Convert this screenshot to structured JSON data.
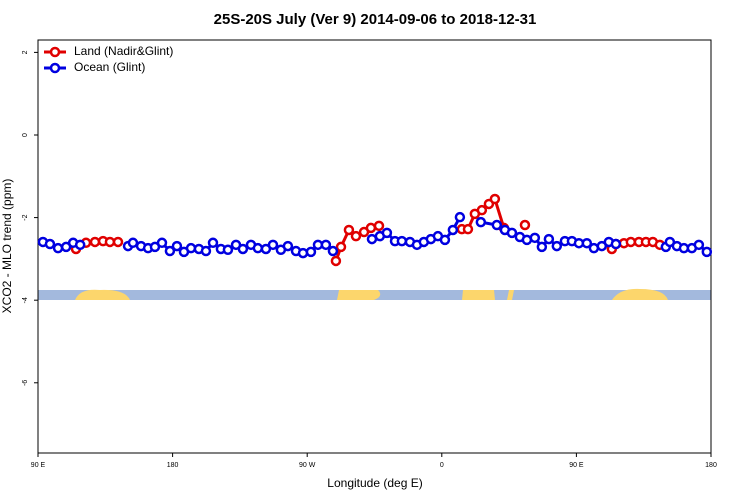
{
  "chart_data": {
    "type": "line",
    "title": "25S-20S July (Ver 9)   2014-09-06 to 2018-12-31",
    "xlabel": "Longitude (deg E)",
    "ylabel": "XCO2 - MLO trend (ppm)",
    "xlim": [
      90,
      540
    ],
    "xticks": [
      {
        "value": 90,
        "label": "90 E"
      },
      {
        "value": 180,
        "label": "180"
      },
      {
        "value": 270,
        "label": "90 W"
      },
      {
        "value": 360,
        "label": "0"
      },
      {
        "value": 450,
        "label": "90 E"
      },
      {
        "value": 540,
        "label": "180"
      }
    ],
    "ylim": [
      -7.7,
      2.3
    ],
    "yticks": [
      2,
      0,
      -2,
      -4,
      -6
    ],
    "legend": "top-left",
    "series": [
      {
        "name": "Land (Nadir&Glint)",
        "color": "#e00000",
        "x": [
          115.4,
          122.1,
          128.1,
          133.5,
          138.1,
          143.5,
          null,
          289.2,
          292.6,
          297.9,
          302.6,
          308.0,
          312.6,
          318.0,
          null,
          373.4,
          377.5,
          382.1,
          386.8,
          391.5,
          395.5,
          401.5,
          null,
          415.6,
          null,
          473.7,
          476.4,
          481.8,
          486.4,
          491.8,
          496.5,
          501.1,
          505.8
        ],
        "values": [
          -2.76,
          -2.61,
          -2.59,
          -2.57,
          -2.59,
          -2.59,
          null,
          -3.05,
          -2.71,
          -2.3,
          -2.45,
          -2.35,
          -2.25,
          -2.2,
          null,
          -2.28,
          -2.28,
          -1.91,
          -1.82,
          -1.67,
          -1.55,
          -2.25,
          null,
          -2.18,
          null,
          -2.76,
          -2.64,
          -2.62,
          -2.59,
          -2.59,
          -2.59,
          -2.59,
          -2.66
        ]
      },
      {
        "name": "Ocean (Glint)",
        "color": "#0000e0",
        "x": [
          93.3,
          98.0,
          103.4,
          108.8,
          113.5,
          118.2,
          null,
          150.2,
          153.5,
          158.9,
          163.6,
          168.2,
          172.9,
          178.2,
          182.9,
          187.6,
          192.3,
          197.6,
          202.3,
          207.0,
          212.3,
          217.0,
          222.4,
          227.0,
          232.4,
          237.0,
          242.4,
          247.1,
          252.4,
          257.1,
          262.5,
          267.2,
          272.5,
          277.2,
          282.5,
          287.2,
          null,
          313.3,
          318.6,
          323.3,
          328.7,
          333.3,
          338.7,
          343.4,
          348.0,
          352.7,
          357.4,
          362.1,
          367.4,
          372.1,
          null,
          386.1,
          396.8,
          402.2,
          406.9,
          412.2,
          416.9,
          422.2,
          426.9,
          431.6,
          436.9,
          442.3,
          447.0,
          451.7,
          457.0,
          461.7,
          467.0,
          471.7,
          476.4,
          null,
          509.8,
          512.5,
          517.2,
          521.9,
          527.2,
          531.9,
          537.2
        ],
        "values": [
          -2.59,
          -2.64,
          -2.74,
          -2.71,
          -2.61,
          -2.66,
          null,
          -2.69,
          -2.61,
          -2.69,
          -2.74,
          -2.71,
          -2.61,
          -2.81,
          -2.69,
          -2.83,
          -2.74,
          -2.76,
          -2.81,
          -2.61,
          -2.76,
          -2.78,
          -2.66,
          -2.76,
          -2.66,
          -2.74,
          -2.76,
          -2.66,
          -2.78,
          -2.69,
          -2.81,
          -2.86,
          -2.83,
          -2.66,
          -2.66,
          -2.81,
          null,
          -2.52,
          -2.45,
          -2.37,
          -2.57,
          -2.57,
          -2.59,
          -2.66,
          -2.59,
          -2.52,
          -2.45,
          -2.54,
          -2.3,
          -1.99,
          null,
          -2.11,
          -2.18,
          -2.3,
          -2.37,
          -2.47,
          -2.54,
          -2.49,
          -2.71,
          -2.52,
          -2.69,
          -2.57,
          -2.57,
          -2.62,
          -2.62,
          -2.74,
          -2.69,
          -2.59,
          -2.64,
          null,
          -2.71,
          -2.59,
          -2.69,
          -2.74,
          -2.74,
          -2.66,
          -2.83
        ]
      }
    ]
  }
}
